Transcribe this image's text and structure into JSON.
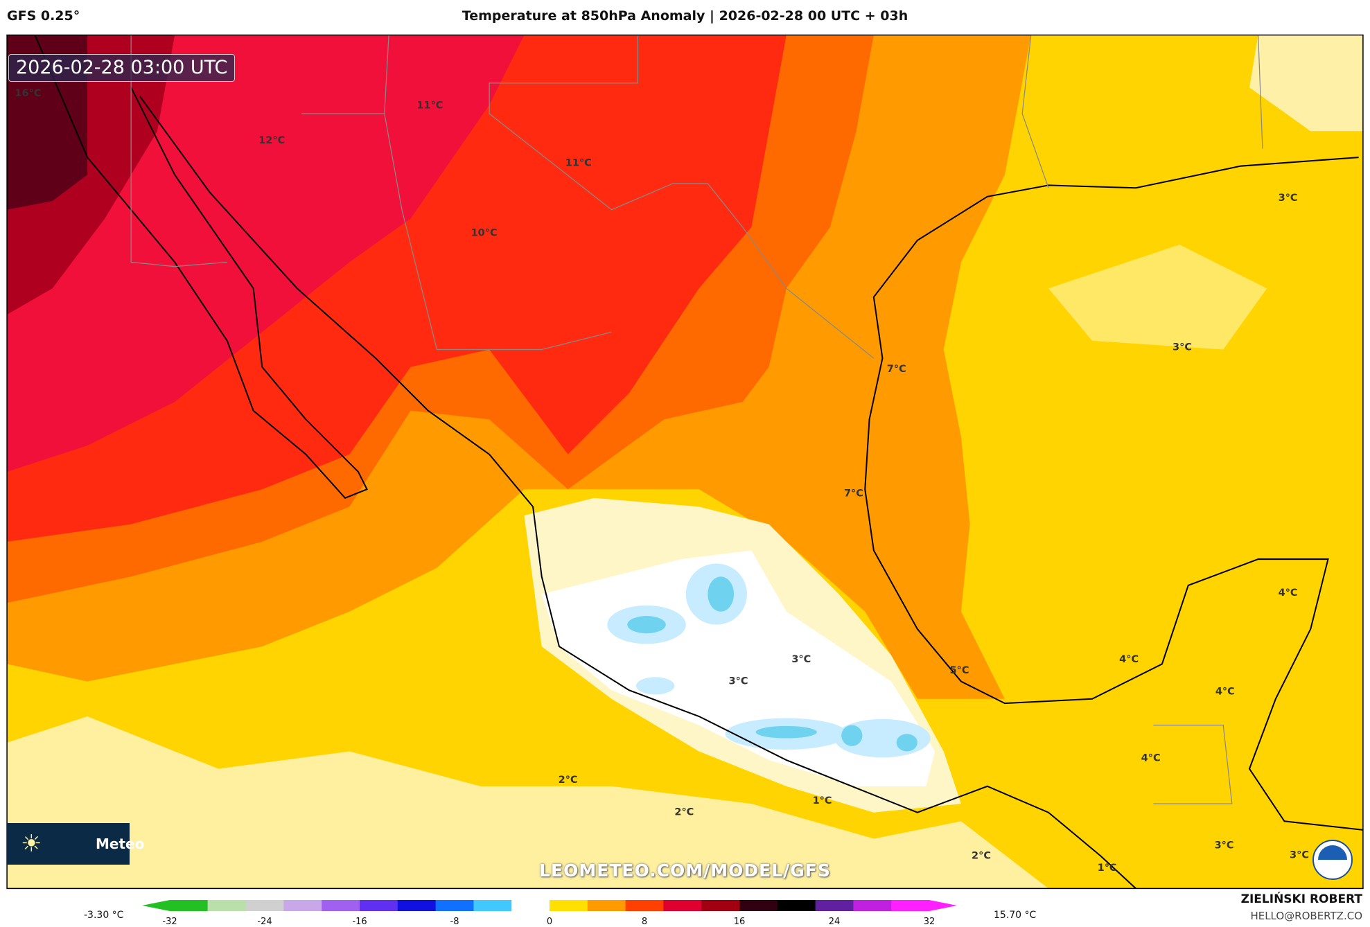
{
  "header": {
    "model": "GFS 0.25°",
    "title": "Temperature at 850hPa Anomaly | 2026-02-28 00 UTC + 03h"
  },
  "map": {
    "valid_time": "2026-02-28 03:00 UTC",
    "logo_text": "Meteo",
    "watermark": "LEOMETEO.COM/MODEL/GFS",
    "logo_icon": "sun-icon",
    "agency_logo": "NOAA",
    "labels": [
      "16°C",
      "12°C",
      "11°C",
      "11°C",
      "10°C",
      "3°C",
      "3°C",
      "7°C",
      "7°C",
      "4°C",
      "4°C",
      "4°C",
      "5°C",
      "3°C",
      "3°C",
      "4°C",
      "2°C",
      "1°C",
      "2°C",
      "2°C",
      "3°C",
      "3°C",
      "1°C"
    ]
  },
  "colorbar": {
    "min_label": "-3.30 °C",
    "max_label": "15.70 °C",
    "ticks": [
      "-32",
      "-24",
      "-16",
      "-8",
      "0",
      "8",
      "16",
      "24",
      "32"
    ],
    "colors": [
      "#22c022",
      "#b8e0a8",
      "#d0d0d0",
      "#c8a8e8",
      "#a060f0",
      "#6030f0",
      "#1010e0",
      "#1070ff",
      "#40c8ff",
      "#ffffff",
      "#ffe000",
      "#ff9a00",
      "#ff4000",
      "#e00030",
      "#a00010",
      "#300010",
      "#000000",
      "#6020a0",
      "#c020e0",
      "#ff20ff"
    ]
  },
  "credits": {
    "author": "ZIELIŃSKI ROBERT",
    "email": "HELLO@ROBERTZ.CO"
  }
}
